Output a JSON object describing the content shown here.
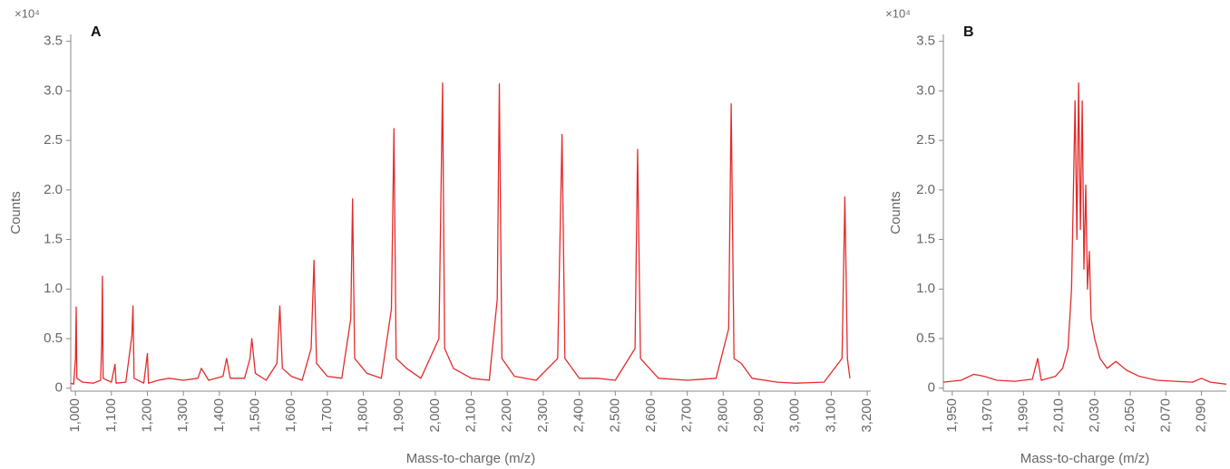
{
  "chart_data": [
    {
      "type": "line",
      "panel_label": "A",
      "y_multiplier": "×10⁴",
      "ylabel": "Counts",
      "xlabel": "Mass-to-charge (m/z)",
      "color": "#e32b2b",
      "xlim": [
        987,
        3210
      ],
      "ylim": [
        -0.03,
        3.57
      ],
      "xticks": [
        {
          "value": 1000,
          "label": "1,000"
        },
        {
          "value": 1100,
          "label": "1,100"
        },
        {
          "value": 1200,
          "label": "1,200"
        },
        {
          "value": 1300,
          "label": "1,300"
        },
        {
          "value": 1400,
          "label": "1,400"
        },
        {
          "value": 1500,
          "label": "1,500"
        },
        {
          "value": 1600,
          "label": "1,600"
        },
        {
          "value": 1700,
          "label": "1,700"
        },
        {
          "value": 1800,
          "label": "1,800"
        },
        {
          "value": 1900,
          "label": "1,900"
        },
        {
          "value": 2000,
          "label": "2,000"
        },
        {
          "value": 2100,
          "label": "2,100"
        },
        {
          "value": 2200,
          "label": "2,200"
        },
        {
          "value": 2300,
          "label": "2,300"
        },
        {
          "value": 2400,
          "label": "2,400"
        },
        {
          "value": 2500,
          "label": "2,500"
        },
        {
          "value": 2600,
          "label": "2,600"
        },
        {
          "value": 2700,
          "label": "2,700"
        },
        {
          "value": 2800,
          "label": "2,800"
        },
        {
          "value": 2900,
          "label": "2,900"
        },
        {
          "value": 3000,
          "label": "3,000"
        },
        {
          "value": 3100,
          "label": "3,100"
        },
        {
          "value": 3200,
          "label": "3,200"
        }
      ],
      "yticks": [
        0,
        0.5,
        {
          "value": 1,
          "label": "1.0"
        },
        1.5,
        {
          "value": 2,
          "label": "2.0"
        },
        2.5,
        {
          "value": 3,
          "label": "3.0"
        },
        3.5
      ],
      "x": [
        987,
        995,
        1000,
        1002,
        1004,
        1020,
        1050,
        1070,
        1073,
        1075,
        1077,
        1100,
        1110,
        1113,
        1140,
        1157,
        1160,
        1163,
        1190,
        1200,
        1203,
        1230,
        1260,
        1300,
        1340,
        1350,
        1370,
        1410,
        1420,
        1430,
        1470,
        1485,
        1490,
        1500,
        1530,
        1560,
        1568,
        1575,
        1600,
        1630,
        1655,
        1663,
        1670,
        1700,
        1740,
        1765,
        1770,
        1776,
        1810,
        1850,
        1878,
        1885,
        1891,
        1920,
        1960,
        2010,
        2020,
        2026,
        2050,
        2100,
        2150,
        2172,
        2178,
        2185,
        2220,
        2280,
        2340,
        2352,
        2360,
        2400,
        2450,
        2500,
        2555,
        2562,
        2570,
        2620,
        2700,
        2780,
        2815,
        2822,
        2830,
        2850,
        2880,
        2950,
        3000,
        3080,
        3130,
        3138,
        3145,
        3152
      ],
      "values": [
        0.05,
        0.04,
        0.3,
        0.82,
        0.1,
        0.06,
        0.05,
        0.08,
        0.43,
        1.13,
        0.1,
        0.06,
        0.24,
        0.05,
        0.06,
        0.53,
        0.83,
        0.1,
        0.05,
        0.35,
        0.05,
        0.08,
        0.1,
        0.08,
        0.1,
        0.2,
        0.08,
        0.12,
        0.3,
        0.1,
        0.1,
        0.3,
        0.5,
        0.15,
        0.08,
        0.25,
        0.83,
        0.2,
        0.12,
        0.08,
        0.4,
        1.29,
        0.25,
        0.12,
        0.1,
        0.7,
        1.91,
        0.3,
        0.15,
        0.1,
        0.8,
        2.62,
        0.3,
        0.2,
        0.1,
        0.5,
        3.08,
        0.4,
        0.2,
        0.1,
        0.08,
        0.9,
        3.07,
        0.3,
        0.12,
        0.08,
        0.3,
        2.56,
        0.3,
        0.1,
        0.1,
        0.08,
        0.4,
        2.41,
        0.3,
        0.1,
        0.08,
        0.1,
        0.6,
        2.87,
        0.3,
        0.25,
        0.1,
        0.06,
        0.05,
        0.06,
        0.3,
        1.93,
        0.3,
        0.1
      ]
    },
    {
      "type": "line",
      "panel_label": "B",
      "y_multiplier": "×10⁴",
      "ylabel": "Counts",
      "xlabel": "Mass-to-charge (m/z)",
      "color": "#e32b2b",
      "xlim": [
        1945,
        2104
      ],
      "ylim": [
        -0.03,
        3.57
      ],
      "xticks": [
        {
          "value": 1950,
          "label": "1,950"
        },
        {
          "value": 1970,
          "label": "1,970"
        },
        {
          "value": 1990,
          "label": "1,990"
        },
        {
          "value": 2010,
          "label": "2,010"
        },
        {
          "value": 2030,
          "label": "2,030"
        },
        {
          "value": 2050,
          "label": "2,050"
        },
        {
          "value": 2070,
          "label": "2,070"
        },
        {
          "value": 2090,
          "label": "2,090"
        }
      ],
      "yticks": [
        0,
        0.5,
        {
          "value": 1,
          "label": "1.0"
        },
        1.5,
        {
          "value": 2,
          "label": "2.0"
        },
        2.5,
        {
          "value": 3,
          "label": "3.0"
        },
        3.5
      ],
      "x": [
        1945,
        1955,
        1962,
        1968,
        1975,
        1985,
        1995,
        1998,
        2000,
        2008,
        2012,
        2015,
        2017,
        2018,
        2019,
        2020,
        2021,
        2022,
        2023,
        2024,
        2025,
        2026,
        2027,
        2028,
        2030,
        2033,
        2037,
        2042,
        2048,
        2055,
        2065,
        2075,
        2085,
        2090,
        2095,
        2104
      ],
      "values": [
        0.06,
        0.08,
        0.14,
        0.12,
        0.08,
        0.07,
        0.09,
        0.3,
        0.08,
        0.12,
        0.2,
        0.4,
        1.0,
        1.9,
        2.9,
        1.5,
        3.08,
        1.6,
        2.9,
        1.2,
        2.05,
        1.0,
        1.38,
        0.7,
        0.5,
        0.3,
        0.2,
        0.27,
        0.18,
        0.12,
        0.08,
        0.07,
        0.06,
        0.1,
        0.06,
        0.04
      ]
    }
  ]
}
